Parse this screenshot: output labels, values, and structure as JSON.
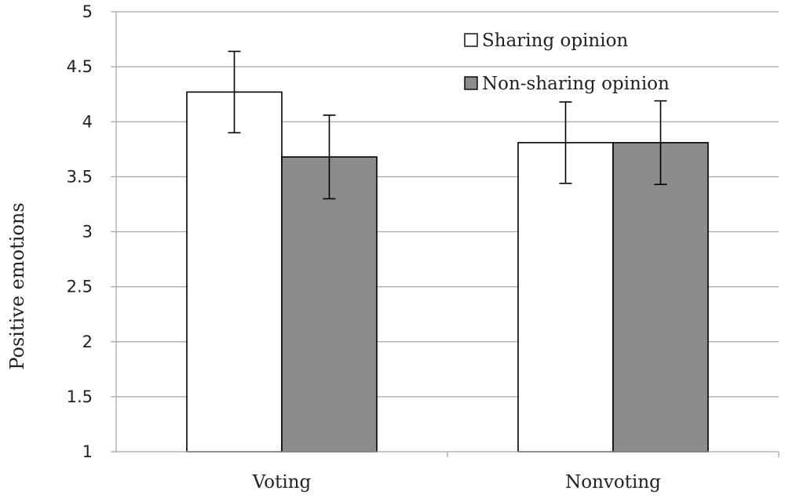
{
  "chart_data": {
    "type": "bar",
    "categories": [
      "Voting",
      "Nonvoting"
    ],
    "series": [
      {
        "name": "Sharing opinion",
        "values": [
          4.27,
          3.81
        ],
        "errors": [
          0.37,
          0.37
        ],
        "color": "#ffffff"
      },
      {
        "name": "Non-sharing opinion",
        "values": [
          3.68,
          3.81
        ],
        "errors": [
          0.38,
          0.38
        ],
        "color": "#8c8c8c"
      }
    ],
    "title": "",
    "xlabel": "",
    "ylabel": "Positive emotions",
    "ylim": [
      1,
      5
    ],
    "yticks": [
      "1",
      "1.5",
      "2",
      "2.5",
      "3",
      "3.5",
      "4",
      "4.5",
      "5"
    ],
    "grid": true,
    "legend_position": "top-right",
    "bar_edge_color": "#000000",
    "grid_color": "#a6a6a6"
  }
}
